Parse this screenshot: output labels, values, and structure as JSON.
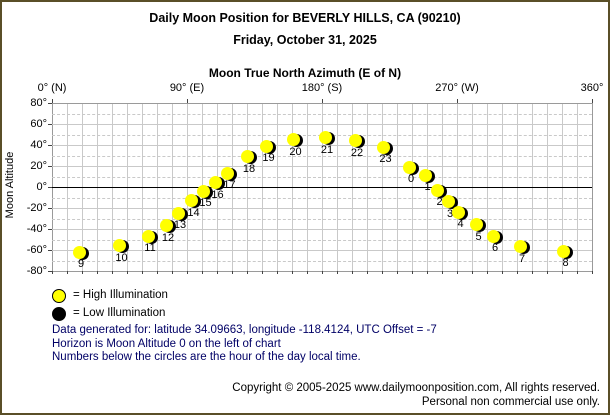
{
  "titles": {
    "line1": "Daily Moon Position for BEVERLY HILLS, CA (90210)",
    "line2": "Friday, October 31, 2025"
  },
  "chart_data": {
    "type": "scatter",
    "title": "Moon True North Azimuth (E of N)",
    "ylabel": "Moon Altitude",
    "xlim": [
      0,
      360
    ],
    "ylim": [
      -80,
      80
    ],
    "grid": "on",
    "x_ticks": [
      {
        "value": 0,
        "label": "0° (N)"
      },
      {
        "value": 90,
        "label": "90° (E)"
      },
      {
        "value": 180,
        "label": "180° (S)"
      },
      {
        "value": 270,
        "label": "270° (W)"
      },
      {
        "value": 360,
        "label": "360°"
      }
    ],
    "y_ticks": [
      80,
      60,
      40,
      20,
      0,
      -20,
      -40,
      -60,
      -80
    ],
    "y_tick_suffix": "°",
    "points": [
      {
        "hour": "9",
        "azimuth": 18,
        "altitude": -62,
        "illumination": "high"
      },
      {
        "hour": "10",
        "azimuth": 45,
        "altitude": -56,
        "illumination": "high"
      },
      {
        "hour": "11",
        "azimuth": 64,
        "altitude": -47,
        "illumination": "high"
      },
      {
        "hour": "12",
        "azimuth": 76,
        "altitude": -37,
        "illumination": "high"
      },
      {
        "hour": "13",
        "azimuth": 84,
        "altitude": -25,
        "illumination": "high"
      },
      {
        "hour": "14",
        "azimuth": 93,
        "altitude": -13,
        "illumination": "high"
      },
      {
        "hour": "15",
        "azimuth": 101,
        "altitude": -4,
        "illumination": "high"
      },
      {
        "hour": "16",
        "azimuth": 109,
        "altitude": 4,
        "illumination": "high"
      },
      {
        "hour": "17",
        "azimuth": 117,
        "altitude": 13,
        "illumination": "high"
      },
      {
        "hour": "18",
        "azimuth": 130,
        "altitude": 29,
        "illumination": "high"
      },
      {
        "hour": "19",
        "azimuth": 143,
        "altitude": 39,
        "illumination": "high"
      },
      {
        "hour": "20",
        "azimuth": 161,
        "altitude": 45,
        "illumination": "high"
      },
      {
        "hour": "21",
        "azimuth": 182,
        "altitude": 47,
        "illumination": "high"
      },
      {
        "hour": "22",
        "azimuth": 202,
        "altitude": 44,
        "illumination": "high"
      },
      {
        "hour": "23",
        "azimuth": 221,
        "altitude": 38,
        "illumination": "high"
      },
      {
        "hour": "0",
        "azimuth": 238,
        "altitude": 19,
        "illumination": "high"
      },
      {
        "hour": "1",
        "azimuth": 249,
        "altitude": 11,
        "illumination": "high"
      },
      {
        "hour": "2",
        "azimuth": 257,
        "altitude": -3,
        "illumination": "high"
      },
      {
        "hour": "3",
        "azimuth": 264,
        "altitude": -14,
        "illumination": "high"
      },
      {
        "hour": "4",
        "azimuth": 271,
        "altitude": -24,
        "illumination": "high"
      },
      {
        "hour": "5",
        "azimuth": 283,
        "altitude": -36,
        "illumination": "high"
      },
      {
        "hour": "6",
        "azimuth": 294,
        "altitude": -47,
        "illumination": "high"
      },
      {
        "hour": "7",
        "azimuth": 312,
        "altitude": -57,
        "illumination": "high"
      },
      {
        "hour": "8",
        "azimuth": 341,
        "altitude": -61,
        "illumination": "high"
      }
    ]
  },
  "legend": {
    "high_label": "= High Illumination",
    "low_label": "= Low Illumination"
  },
  "notes": {
    "line1": "Data generated for: latitude 34.09663, longitude -118.4124, UTC Offset = -7",
    "line2": "Horizon is Moon Altitude 0 on the left of chart",
    "line3": "Numbers below the circles are the hour of the day local time."
  },
  "footer": {
    "line1": "Copyright © 2005-2025 www.dailymoonposition.com, All rights reserved.",
    "line2": "Personal non commercial use only."
  },
  "colors": {
    "moon_high": "#ffff00",
    "moon_low": "#000000",
    "note_text": "#000066",
    "frame_border": "#5a4f28",
    "grid": "#c9c9c9",
    "grid_edge": "#9a9a9a",
    "horizon": "#000000"
  }
}
